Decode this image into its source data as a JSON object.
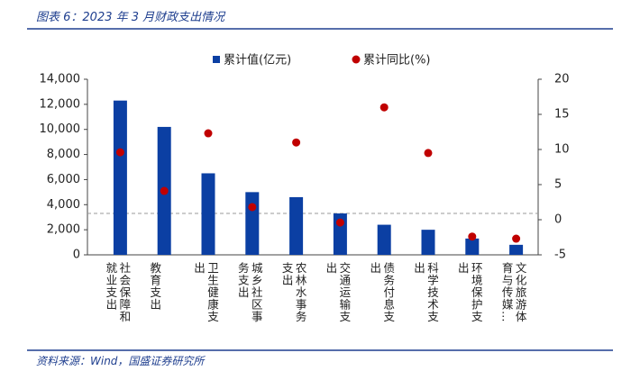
{
  "title": "图表 6：2023 年 3 月财政支出情况",
  "source": "资料来源：Wind，国盛证券研究所",
  "chart_data": {
    "type": "bar",
    "categories": [
      "社会保障和就业支出",
      "教育支出",
      "卫生健康支出",
      "城乡社区事务支出",
      "农林水事务支出",
      "交通运输支出",
      "债务付息支出",
      "科学技术支出",
      "环境保护支出",
      "文化旅游体育与传媒…"
    ],
    "series": [
      {
        "name": "累计值(亿元)",
        "type": "bar",
        "color": "#0b3fa3",
        "values": [
          12300,
          10200,
          6500,
          5000,
          4600,
          3300,
          2400,
          2000,
          1300,
          800
        ]
      },
      {
        "name": "累计同比(%)",
        "type": "scatter",
        "axis": "y2",
        "color": "#c00000",
        "values": [
          9.6,
          4.1,
          12.3,
          1.8,
          11.0,
          -0.4,
          16.0,
          9.5,
          -2.4,
          -2.7
        ]
      }
    ],
    "ylim": [
      0,
      14000
    ],
    "yticks": [
      0,
      {
        "value": 2000,
        "label": "2,000"
      },
      {
        "value": 4000,
        "label": "4,000"
      },
      {
        "value": 6000,
        "label": "6,000"
      },
      {
        "value": 8000,
        "label": "8,000"
      },
      {
        "value": 10000,
        "label": "10,000"
      },
      {
        "value": 12000,
        "label": "12,000"
      },
      {
        "value": 14000,
        "label": "14,000"
      }
    ],
    "y2lim": [
      -5,
      20
    ],
    "y2ticks": [
      -5,
      0,
      5,
      10,
      15,
      20
    ],
    "legend": "top"
  }
}
